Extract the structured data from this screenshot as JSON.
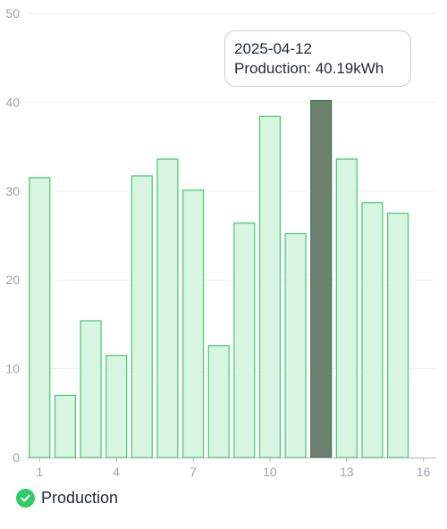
{
  "chart_data": {
    "type": "bar",
    "series": [
      {
        "name": "Production",
        "x": [
          1,
          2,
          3,
          4,
          5,
          6,
          7,
          8,
          9,
          10,
          11,
          12,
          13,
          14,
          15
        ],
        "values": [
          31.5,
          7.0,
          15.4,
          11.5,
          31.7,
          33.6,
          30.1,
          12.6,
          26.4,
          38.4,
          25.2,
          40.19,
          33.6,
          28.7,
          27.5
        ]
      }
    ],
    "xlim": [
      0.5,
      16.5
    ],
    "ylim": [
      0,
      50
    ],
    "x_ticks": [
      1,
      4,
      7,
      10,
      13,
      16
    ],
    "y_ticks": [
      0,
      10,
      20,
      30,
      40,
      50
    ],
    "grid": true,
    "highlighted_index": 11,
    "legend_position": "bottom-left",
    "colors": {
      "bar_fill": "#d7f5e1",
      "bar_stroke": "#3ecb72",
      "highlight_fill": "#6f7f72",
      "highlight_stroke": "#2f7a47",
      "legend_dot": "#2ecc65",
      "grid": "#f0f1f3",
      "axis": "#9ca3af"
    }
  },
  "tooltip": {
    "date": "2025-04-12",
    "label": "Production: 40.19kWh"
  },
  "legend": {
    "label": "Production",
    "icon": "check-icon"
  }
}
